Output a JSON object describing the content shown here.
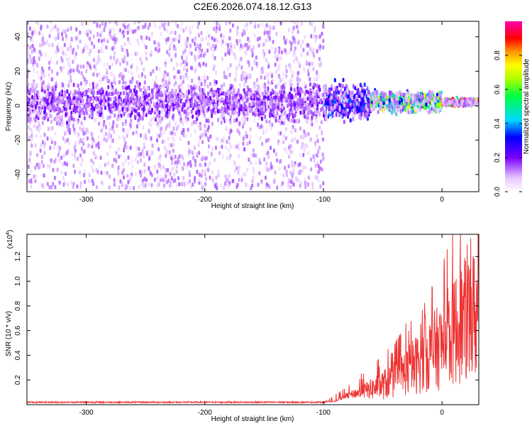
{
  "title": "C2E6.2026.074.18.12.G13",
  "chart_data": [
    {
      "type": "heatmap",
      "xlabel": "Height of straight line (km)",
      "ylabel": "Frequency (Hz)",
      "xlim": [
        -350,
        31
      ],
      "ylim": [
        -50,
        49
      ],
      "xticks": [
        -300,
        -200,
        -100,
        0
      ],
      "yticks": [
        -40,
        -20,
        0,
        20,
        40
      ],
      "colorbar": {
        "label": "Normalized spectral amplitude",
        "range": [
          0,
          1
        ],
        "ticks": [
          "0.0",
          "0.2",
          "0.4",
          "0.6",
          "0.8"
        ]
      },
      "band_center_hz": 2,
      "regions": [
        {
          "x_from": -350,
          "x_to": -100,
          "description_values": {
            "core_halfwidth_hz": 8,
            "scatter_halfwidth_hz": 50,
            "typical_amplitude": 0.15
          }
        },
        {
          "x_from": -100,
          "x_to": -60,
          "description_values": {
            "core_halfwidth_hz": 8,
            "scatter_halfwidth_hz": 10,
            "typical_amplitude": 0.25
          }
        },
        {
          "x_from": -60,
          "x_to": 0,
          "description_values": {
            "core_halfwidth_hz": 4,
            "scatter_halfwidth_hz": 6,
            "typical_amplitude": 0.5
          }
        },
        {
          "x_from": 0,
          "x_to": 31,
          "description_values": {
            "core_halfwidth_hz": 1.5,
            "scatter_halfwidth_hz": 2,
            "typical_amplitude": 0.8
          }
        }
      ]
    },
    {
      "type": "line",
      "xlabel": "Height of straight line (km)",
      "ylabel": "SNR (10 * v/v)",
      "y_multiplier": "(x10",
      "y_multiplier_exp": "4",
      "y_multiplier_close": ")",
      "xlim": [
        -350,
        31
      ],
      "ylim": [
        0,
        1.38
      ],
      "xticks": [
        -300,
        -200,
        -100,
        0
      ],
      "yticks": [
        0.2,
        0.4,
        0.6,
        0.8,
        1.0,
        1.2
      ],
      "ytick_labels": [
        "0.2",
        "0.4",
        "0.6",
        "0.8",
        "1.0",
        "1.2"
      ],
      "color": "#ee3333",
      "series": [
        {
          "x": [
            -350,
            -300,
            -250,
            -200,
            -150,
            -100,
            -90,
            -80,
            -70,
            -60,
            -50,
            -40,
            -30,
            -20,
            -10,
            0,
            10,
            20,
            31
          ],
          "y": [
            0.02,
            0.02,
            0.02,
            0.02,
            0.02,
            0.02,
            0.04,
            0.1,
            0.13,
            0.16,
            0.2,
            0.26,
            0.34,
            0.42,
            0.52,
            0.6,
            0.75,
            0.86,
            0.93
          ]
        }
      ],
      "peak": {
        "x": 9,
        "y": 1.38
      }
    }
  ]
}
